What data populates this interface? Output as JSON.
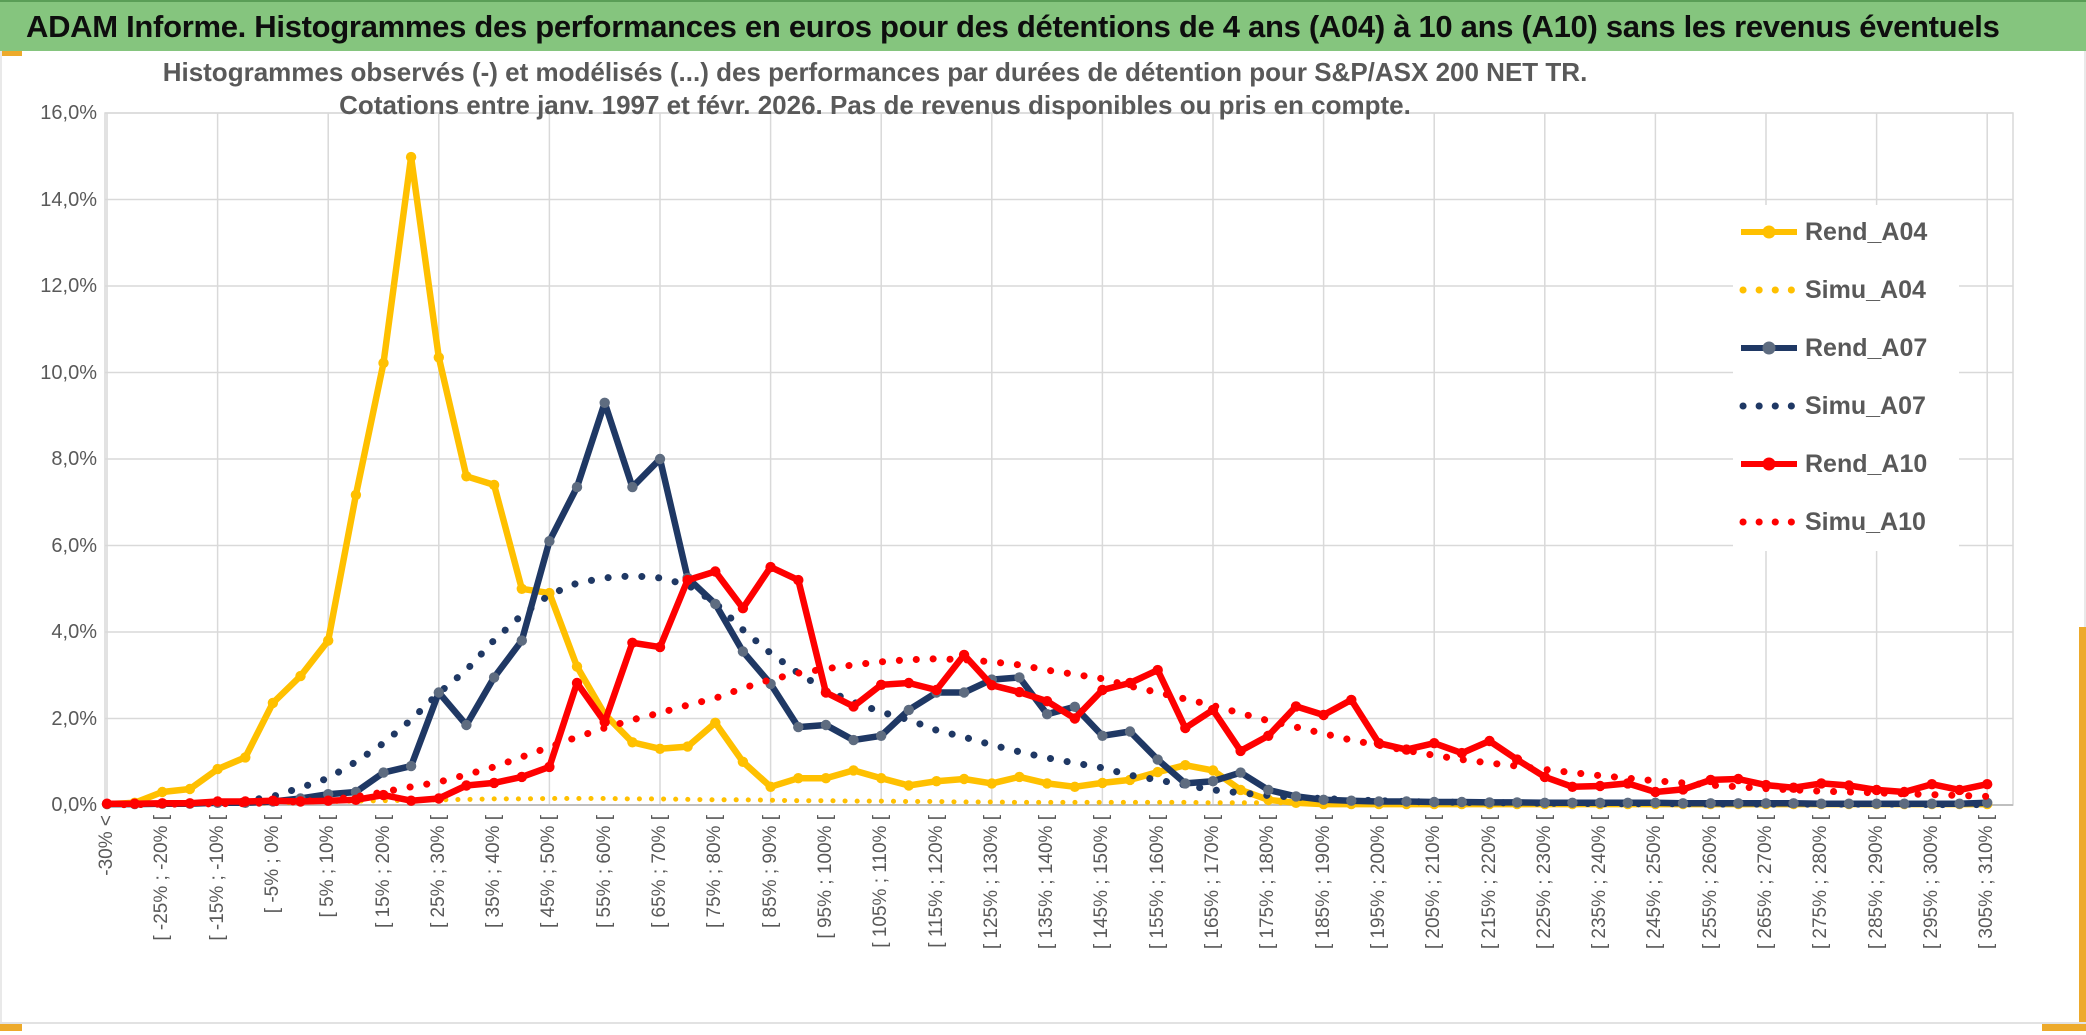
{
  "header": {
    "title": "ADAM Informe. Histogrammes des performances en euros pour des détentions de 4 ans (A04) à 10 ans (A10) sans les revenus éventuels"
  },
  "chart": {
    "title_line1": "Histogrammes observés (-) et modélisés (...) des performances par durées de détention pour S&P/ASX 200 NET TR.",
    "title_line2": "Cotations entre janv. 1997 et févr. 2026. Pas de revenus disponibles ou pris en compte.",
    "y_axis": {
      "tick_labels": [
        "0,0%",
        "2,0%",
        "4,0%",
        "6,0%",
        "8,0%",
        "10,0%",
        "12,0%",
        "14,0%",
        "16,0%"
      ],
      "min": 0,
      "max": 16,
      "step": 2
    },
    "x_axis": {
      "labels_shown_every": 2,
      "rotation_degrees": -90
    },
    "legend": [
      {
        "label": "Rend_A04",
        "color": "#FFC000",
        "style": "solid"
      },
      {
        "label": "Simu_A04",
        "color": "#FFC000",
        "style": "dotted"
      },
      {
        "label": "Rend_A07",
        "color": "#1F3864",
        "style": "solid",
        "marker_color": "#5E6C80"
      },
      {
        "label": "Simu_A07",
        "color": "#1F3864",
        "style": "dotted"
      },
      {
        "label": "Rend_A10",
        "color": "#FE0000",
        "style": "solid"
      },
      {
        "label": "Simu_A10",
        "color": "#FE0000",
        "style": "dotted"
      }
    ],
    "colors": {
      "header_bg": "#85C57E",
      "accent_gold": "#EDAA2B",
      "grid": "#D9D9D9",
      "axis_line": "#BFBFBF",
      "text_gray": "#595959",
      "series_gold": "#FFC000",
      "series_navy": "#1F3864",
      "series_red": "#FE0000"
    }
  },
  "chart_data": {
    "type": "line",
    "title": "Histogrammes observés (-) et modélisés (...) des performances par durées de détention pour S&P/ASX 200 NET TR. Cotations entre janv. 1997 et févr. 2026. Pas de revenus disponibles ou pris en compte.",
    "xlabel": "",
    "ylabel": "",
    "ylim": [
      0,
      16
    ],
    "y_tick_format": "percent-comma",
    "grid": true,
    "legend_position": "right-inside",
    "categories": [
      "-30% <",
      "[ -30% ; -25% [",
      "[ -25% ; -20% [",
      "[ -20% ; -15% [",
      "[ -15% ; -10% [",
      "[ -10% ; -5% [",
      "[ -5% ; 0% [",
      "[ 0% ; 5% [",
      "[ 5% ; 10% [",
      "[ 10% ; 15% [",
      "[ 15% ; 20% [",
      "[ 20% ; 25% [",
      "[ 25% ; 30% [",
      "[ 30% ; 35% [",
      "[ 35% ; 40% [",
      "[ 40% ; 45% [",
      "[ 45% ; 50% [",
      "[ 50% ; 55% [",
      "[ 55% ; 60% [",
      "[ 60% ; 65% [",
      "[ 65% ; 70% [",
      "[ 70% ; 75% [",
      "[ 75% ; 80% [",
      "[ 80% ; 85% [",
      "[ 85% ; 90% [",
      "[ 90% ; 95% [",
      "[ 95% ; 100% [",
      "[ 100% ; 105% [",
      "[ 105% ; 110% [",
      "[ 110% ; 115% [",
      "[ 115% ; 120% [",
      "[ 120% ; 125% [",
      "[ 125% ; 130% [",
      "[ 130% ; 135% [",
      "[ 135% ; 140% [",
      "[ 140% ; 145% [",
      "[ 145% ; 150% [",
      "[ 150% ; 155% [",
      "[ 155% ; 160% [",
      "[ 160% ; 165% [",
      "[ 165% ; 170% [",
      "[ 170% ; 175% [",
      "[ 175% ; 180% [",
      "[ 180% ; 185% [",
      "[ 185% ; 190% [",
      "[ 190% ; 195% [",
      "[ 195% ; 200% [",
      "[ 200% ; 205% [",
      "[ 205% ; 210% [",
      "[ 210% ; 215% [",
      "[ 215% ; 220% [",
      "[ 220% ; 225% [",
      "[ 225% ; 230% [",
      "[ 230% ; 235% [",
      "[ 235% ; 240% [",
      "[ 240% ; 245% [",
      "[ 245% ; 250% [",
      "[ 250% ; 255% [",
      "[ 255% ; 260% [",
      "[ 260% ; 265% [",
      "[ 265% ; 270% [",
      "[ 270% ; 275% [",
      "[ 275% ; 280% [",
      "[ 280% ; 285% [",
      "[ 285% ; 290% [",
      "[ 290% ; 295% [",
      "[ 295% ; 300% [",
      "[ 300% ; 305% [",
      "[ 305% ; 310% ["
    ],
    "series": [
      {
        "name": "Simu_A04",
        "color": "#FFC000",
        "style": "dotted",
        "values": [
          0.02,
          0.02,
          0.02,
          0.02,
          0.03,
          0.04,
          0.05,
          0.06,
          0.08,
          0.09,
          0.1,
          0.11,
          0.12,
          0.13,
          0.14,
          0.14,
          0.15,
          0.15,
          0.15,
          0.14,
          0.14,
          0.13,
          0.12,
          0.12,
          0.11,
          0.1,
          0.1,
          0.09,
          0.09,
          0.08,
          0.08,
          0.07,
          0.07,
          0.06,
          0.06,
          0.06,
          0.06,
          0.06,
          0.06,
          0.06,
          0.05,
          0.05,
          0.05,
          0.05,
          0.05,
          0.05,
          0.05,
          0.05,
          0.05,
          0.05,
          0.04,
          0.04,
          0.04,
          0.04,
          0.04,
          0.04,
          0.04,
          0.04,
          0.04,
          0.04,
          0.03,
          0.03,
          0.03,
          0.03,
          0.03,
          0.03,
          0.03,
          0.03,
          0.03
        ]
      },
      {
        "name": "Rend_A04",
        "color": "#FFC000",
        "style": "solid",
        "values": [
          0.02,
          0.05,
          0.3,
          0.37,
          0.83,
          1.1,
          2.36,
          2.98,
          3.8,
          7.17,
          10.22,
          14.98,
          10.35,
          7.6,
          7.4,
          5.0,
          4.9,
          3.2,
          2.1,
          1.45,
          1.3,
          1.35,
          1.9,
          1.0,
          0.42,
          0.62,
          0.62,
          0.8,
          0.62,
          0.45,
          0.55,
          0.6,
          0.5,
          0.65,
          0.5,
          0.42,
          0.51,
          0.58,
          0.76,
          0.92,
          0.8,
          0.35,
          0.12,
          0.05,
          0.02,
          0.02,
          0.02,
          0.02,
          0.02,
          0.02,
          0.02,
          0.02,
          0.02,
          0.02,
          0.02,
          0.02,
          0.02,
          0.02,
          0.02,
          0.02,
          0.02,
          0.02,
          0.02,
          0.02,
          0.02,
          0.02,
          0.02,
          0.02,
          0.02
        ]
      },
      {
        "name": "Simu_A07",
        "color": "#1F3864",
        "style": "dotted",
        "values": [
          0.01,
          0.01,
          0.02,
          0.03,
          0.05,
          0.09,
          0.2,
          0.4,
          0.62,
          1.0,
          1.43,
          1.97,
          2.59,
          3.12,
          3.81,
          4.39,
          4.86,
          5.13,
          5.25,
          5.3,
          5.25,
          5.09,
          4.67,
          4.05,
          3.51,
          3.05,
          2.66,
          2.38,
          2.15,
          1.97,
          1.73,
          1.57,
          1.39,
          1.23,
          1.09,
          0.97,
          0.86,
          0.69,
          0.58,
          0.46,
          0.35,
          0.28,
          0.22,
          0.18,
          0.15,
          0.12,
          0.1,
          0.08,
          0.07,
          0.06,
          0.05,
          0.05,
          0.04,
          0.04,
          0.03,
          0.03,
          0.03,
          0.03,
          0.02,
          0.02,
          0.02,
          0.02,
          0.02,
          0.02,
          0.02,
          0.02,
          0.01,
          0.01,
          0.01
        ]
      },
      {
        "name": "Rend_A07",
        "color": "#1F3864",
        "style": "solid",
        "marker_color": "#5E6C80",
        "values": [
          0.02,
          0.02,
          0.03,
          0.03,
          0.05,
          0.05,
          0.08,
          0.15,
          0.25,
          0.3,
          0.75,
          0.9,
          2.6,
          1.85,
          2.95,
          3.8,
          6.1,
          7.35,
          9.3,
          7.35,
          8.0,
          5.25,
          4.65,
          3.55,
          2.8,
          1.8,
          1.85,
          1.5,
          1.6,
          2.2,
          2.6,
          2.6,
          2.9,
          2.95,
          2.1,
          2.27,
          1.6,
          1.7,
          1.05,
          0.5,
          0.55,
          0.75,
          0.35,
          0.2,
          0.12,
          0.1,
          0.08,
          0.08,
          0.07,
          0.07,
          0.06,
          0.06,
          0.05,
          0.05,
          0.05,
          0.05,
          0.05,
          0.04,
          0.04,
          0.04,
          0.04,
          0.04,
          0.03,
          0.03,
          0.03,
          0.03,
          0.03,
          0.03,
          0.05
        ]
      },
      {
        "name": "Simu_A10",
        "color": "#FE0000",
        "style": "dotted",
        "values": [
          0.01,
          0.01,
          0.02,
          0.02,
          0.03,
          0.03,
          0.05,
          0.08,
          0.12,
          0.19,
          0.3,
          0.42,
          0.53,
          0.7,
          0.88,
          1.11,
          1.34,
          1.57,
          1.78,
          1.97,
          2.13,
          2.31,
          2.47,
          2.7,
          2.9,
          3.05,
          3.15,
          3.24,
          3.31,
          3.36,
          3.38,
          3.36,
          3.31,
          3.24,
          3.12,
          3.02,
          2.92,
          2.75,
          2.6,
          2.45,
          2.3,
          2.12,
          1.95,
          1.8,
          1.65,
          1.5,
          1.38,
          1.26,
          1.15,
          1.05,
          0.97,
          0.9,
          0.82,
          0.75,
          0.68,
          0.62,
          0.56,
          0.51,
          0.46,
          0.42,
          0.38,
          0.35,
          0.32,
          0.3,
          0.28,
          0.26,
          0.24,
          0.22,
          0.2
        ]
      },
      {
        "name": "Rend_A10",
        "color": "#FE0000",
        "style": "solid",
        "values": [
          0.03,
          0.03,
          0.04,
          0.04,
          0.08,
          0.08,
          0.1,
          0.08,
          0.1,
          0.12,
          0.23,
          0.1,
          0.15,
          0.45,
          0.51,
          0.65,
          0.88,
          2.82,
          1.92,
          3.75,
          3.65,
          5.2,
          5.4,
          4.55,
          5.5,
          5.2,
          2.6,
          2.28,
          2.78,
          2.82,
          2.66,
          3.47,
          2.77,
          2.61,
          2.4,
          2.0,
          2.66,
          2.82,
          3.12,
          1.78,
          2.2,
          1.25,
          1.6,
          2.28,
          2.08,
          2.43,
          1.43,
          1.28,
          1.43,
          1.2,
          1.48,
          1.05,
          0.65,
          0.42,
          0.44,
          0.5,
          0.3,
          0.36,
          0.58,
          0.6,
          0.46,
          0.4,
          0.5,
          0.45,
          0.35,
          0.3,
          0.48,
          0.35,
          0.48
        ]
      }
    ]
  }
}
